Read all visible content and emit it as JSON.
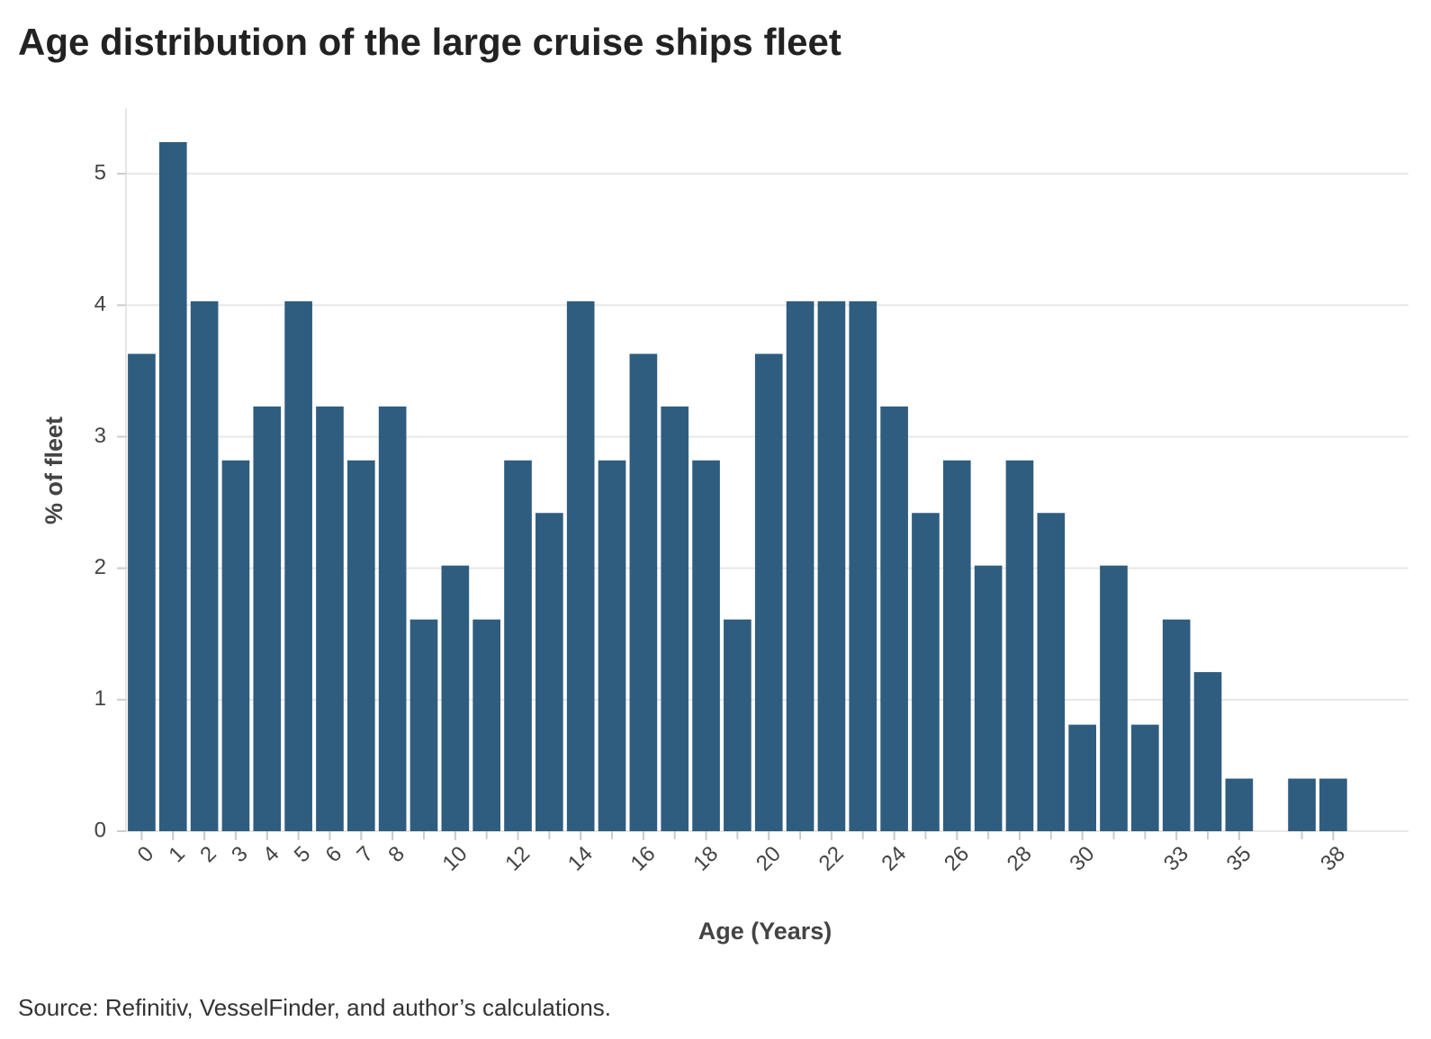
{
  "chart_data": {
    "type": "bar",
    "title": "Age distribution of the large cruise ships fleet",
    "x_label": "Age (Years)",
    "y_label": "% of fleet",
    "source": "Source: Refinitiv, VesselFinder, and author’s calculations.",
    "x": [
      0,
      1,
      2,
      3,
      4,
      5,
      6,
      7,
      8,
      9,
      10,
      11,
      12,
      13,
      14,
      15,
      16,
      17,
      18,
      19,
      20,
      21,
      22,
      23,
      24,
      25,
      26,
      27,
      28,
      29,
      30,
      31,
      32,
      33,
      34,
      35,
      37,
      38
    ],
    "values": [
      3.63,
      5.24,
      4.03,
      2.82,
      3.23,
      4.03,
      3.23,
      2.82,
      3.23,
      1.61,
      2.02,
      1.61,
      2.82,
      2.42,
      4.03,
      2.82,
      3.63,
      3.23,
      2.82,
      1.61,
      3.63,
      4.03,
      4.03,
      4.03,
      3.23,
      2.42,
      2.82,
      2.02,
      2.82,
      2.42,
      0.81,
      2.02,
      0.81,
      1.61,
      1.21,
      0.4,
      0.4,
      0.4
    ],
    "color": "#2f5d80",
    "xlim": [
      -0.5,
      40.4
    ],
    "xticks": [
      0,
      1,
      2,
      3,
      4,
      5,
      6,
      7,
      8,
      10,
      12,
      14,
      16,
      18,
      20,
      22,
      24,
      26,
      28,
      30,
      33,
      35,
      38
    ],
    "ylim": [
      0,
      5.5
    ],
    "yticks": [
      0,
      1,
      2,
      3,
      4,
      5
    ],
    "grid": true
  }
}
